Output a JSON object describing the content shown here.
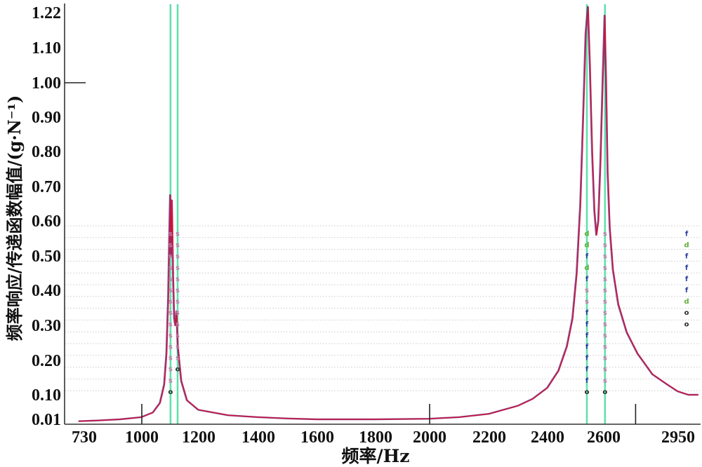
{
  "chart_data": {
    "type": "line",
    "xlabel": "频率/Hz",
    "ylabel": "频率响应/传递函数幅值/(g·N⁻¹)",
    "x_ticks": [
      "730",
      "1000",
      "1200",
      "1400",
      "1600",
      "1800",
      "2000",
      "2200",
      "2400",
      "2600",
      "2950"
    ],
    "y_ticks": [
      "0.01",
      "0.10",
      "0.20",
      "0.30",
      "0.40",
      "0.50",
      "0.60",
      "0.70",
      "0.80",
      "0.90",
      "1.00",
      "1.10",
      "1.22"
    ],
    "xlim": [
      640,
      3050
    ],
    "ylim": [
      0,
      1.25
    ],
    "grid": true,
    "major_ticks_x": [
      1000,
      2000,
      2750
    ],
    "major_ticks_y": [
      1.0
    ],
    "series": [
      {
        "x": [
          705,
          800,
          900,
          1000,
          1040,
          1065,
          1080,
          1088,
          1094,
          1098,
          1101,
          1104,
          1107,
          1111,
          1115,
          1119,
          1123,
          1128,
          1140,
          1160,
          1200,
          1300,
          1400,
          1500,
          1600,
          1800,
          2000,
          2100,
          2200,
          2300,
          2350,
          2400,
          2440,
          2470,
          2490,
          2505,
          2518,
          2528,
          2537,
          2545,
          2552,
          2560,
          2568,
          2575,
          2582,
          2590,
          2598,
          2606,
          2613,
          2620,
          2630,
          2645,
          2670,
          2710,
          2760,
          2830,
          2900,
          2950,
          3000,
          3046
        ],
        "y": [
          0.003,
          0.006,
          0.01,
          0.018,
          0.035,
          0.07,
          0.13,
          0.22,
          0.38,
          0.56,
          0.675,
          0.5,
          0.66,
          0.45,
          0.32,
          0.3,
          0.34,
          0.24,
          0.14,
          0.08,
          0.045,
          0.025,
          0.018,
          0.013,
          0.01,
          0.01,
          0.012,
          0.018,
          0.03,
          0.06,
          0.085,
          0.12,
          0.17,
          0.24,
          0.32,
          0.45,
          0.65,
          0.9,
          1.15,
          1.24,
          1.05,
          0.8,
          0.63,
          0.56,
          0.6,
          0.78,
          1.02,
          1.21,
          1.0,
          0.74,
          0.58,
          0.46,
          0.36,
          0.28,
          0.22,
          0.16,
          0.13,
          0.11,
          0.1,
          0.1
        ],
        "color": "#c8143c",
        "edge_color": "#5b1d7a"
      }
    ],
    "cursor_lines": {
      "x": [
        1101,
        1126,
        2540,
        2606
      ],
      "color": "#62e0ad"
    },
    "markers": [
      {
        "x": 1101,
        "symbols": [
          "s",
          "s",
          "s",
          "s",
          "s",
          "s",
          "s",
          "s",
          "s",
          "s",
          "s",
          "s",
          "s",
          "s",
          "o"
        ]
      },
      {
        "x": 1126,
        "symbols": [
          "s",
          "s",
          "s",
          "s",
          "s",
          "s",
          "s",
          "s",
          "s",
          "s",
          "s",
          "s",
          "o"
        ]
      },
      {
        "x": 2540,
        "symbols": [
          "d",
          "d",
          "f",
          "d",
          "f",
          "s",
          "s",
          "f",
          "f",
          "f",
          "f",
          "f",
          "f",
          "f",
          "o"
        ]
      },
      {
        "x": 2606,
        "symbols": [
          "s",
          "s",
          "s",
          "s",
          "s",
          "s",
          "s",
          "s",
          "s",
          "s",
          "s",
          "s",
          "s",
          "s",
          "o"
        ]
      },
      {
        "x": 2990,
        "symbols": [
          "f",
          "d",
          "f",
          "f",
          "f",
          "f",
          "d",
          "o",
          "o"
        ]
      }
    ],
    "marker_colors": {
      "s": "#c77bab",
      "f": "#2b3f9e",
      "d": "#62b13a",
      "o": "#2a2a2a"
    },
    "axis_color": "#333333"
  }
}
